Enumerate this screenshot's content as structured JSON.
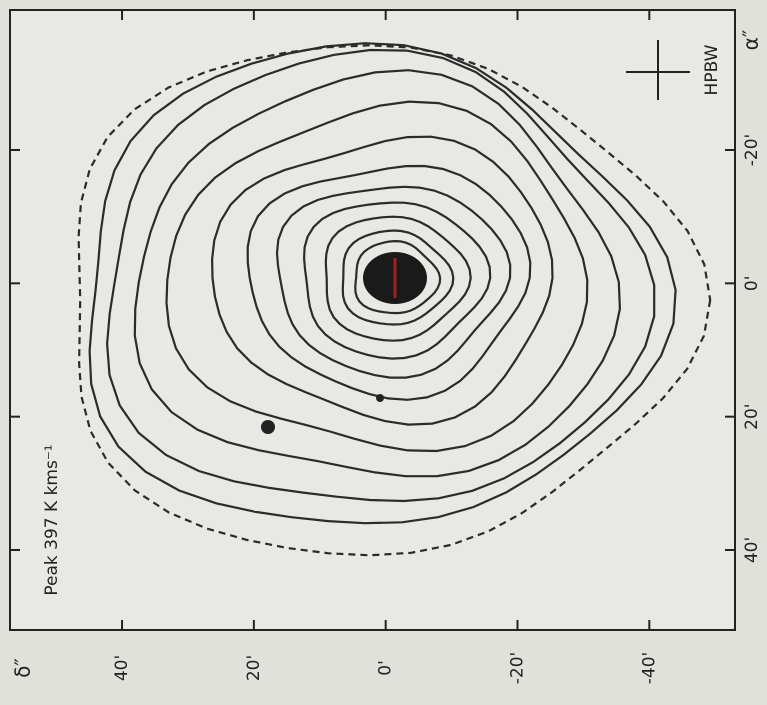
{
  "chart_data": {
    "type": "contour",
    "annotation": "Peak 397 K kms⁻¹",
    "beam_label": "HPBW",
    "xlabel": "δ″",
    "ylabel": "α″",
    "xlim": [
      57,
      -53
    ],
    "xticks": [
      {
        "value": 40,
        "label": "40'"
      },
      {
        "value": 20,
        "label": "20'"
      },
      {
        "value": 0,
        "label": "0'"
      },
      {
        "value": -20,
        "label": "-20'"
      },
      {
        "value": -40,
        "label": "-40'"
      }
    ],
    "ylim": [
      -41,
      52
    ],
    "yticks": [
      {
        "value": -20,
        "label": "-20'"
      },
      {
        "value": 0,
        "label": "0'"
      },
      {
        "value": 20,
        "label": "20'"
      },
      {
        "value": 40,
        "label": "40'"
      }
    ],
    "color": "#2b2b2b"
  }
}
